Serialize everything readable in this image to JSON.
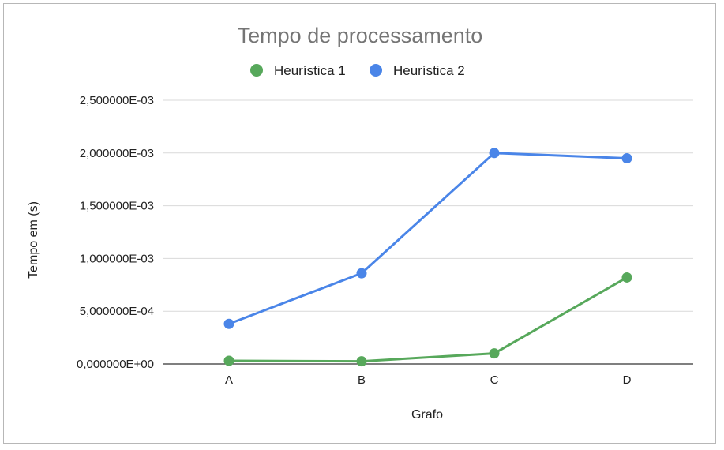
{
  "chart_data": {
    "type": "line",
    "title": "Tempo de processamento",
    "xlabel": "Grafo",
    "ylabel": "Tempo em (s)",
    "categories": [
      "A",
      "B",
      "C",
      "D"
    ],
    "ylim": [
      0,
      0.0025
    ],
    "y_ticks": [
      0,
      0.0005,
      0.001,
      0.0015,
      0.002,
      0.0025
    ],
    "y_tick_labels": [
      "0,000000E+00",
      "5,000000E-04",
      "1,000000E-03",
      "1,500000E-03",
      "2,000000E-03",
      "2,500000E-03"
    ],
    "grid": true,
    "legend_position": "top",
    "series": [
      {
        "name": "Heurística 1",
        "color": "#57a85b",
        "values": [
          3e-05,
          2.5e-05,
          0.0001,
          0.00082
        ]
      },
      {
        "name": "Heurística 2",
        "color": "#4a85e8",
        "values": [
          0.00038,
          0.00086,
          0.002,
          0.00195
        ]
      }
    ]
  }
}
